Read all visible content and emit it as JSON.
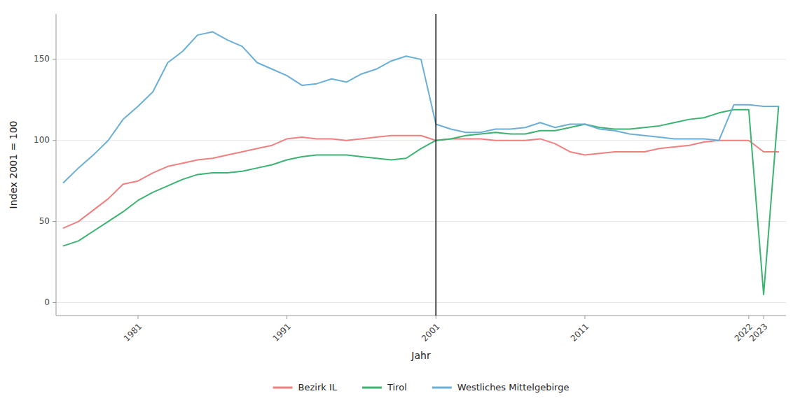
{
  "chart_data": {
    "type": "line",
    "xlabel": "Jahr",
    "ylabel": "Index 2001 = 100",
    "x": [
      1976,
      1977,
      1978,
      1979,
      1980,
      1981,
      1982,
      1983,
      1984,
      1985,
      1986,
      1987,
      1988,
      1989,
      1990,
      1991,
      1992,
      1993,
      1994,
      1995,
      1996,
      1997,
      1998,
      1999,
      2000,
      2001,
      2002,
      2003,
      2004,
      2005,
      2006,
      2007,
      2008,
      2009,
      2010,
      2011,
      2012,
      2013,
      2014,
      2015,
      2016,
      2017,
      2018,
      2019,
      2020,
      2021,
      2022,
      2023,
      2024
    ],
    "series": [
      {
        "name": "Bezirk IL",
        "color": "#F08080",
        "values": [
          46,
          50,
          57,
          64,
          73,
          75,
          80,
          84,
          86,
          88,
          89,
          91,
          93,
          95,
          97,
          101,
          102,
          101,
          101,
          100,
          101,
          102,
          103,
          103,
          103,
          100,
          101,
          101,
          101,
          100,
          100,
          100,
          101,
          98,
          93,
          91,
          92,
          93,
          93,
          93,
          95,
          96,
          97,
          99,
          100,
          100,
          100,
          93,
          93
        ]
      },
      {
        "name": "Tirol",
        "color": "#3CB371",
        "values": [
          35,
          38,
          44,
          50,
          56,
          63,
          68,
          72,
          76,
          79,
          80,
          80,
          81,
          83,
          85,
          88,
          90,
          91,
          91,
          91,
          90,
          89,
          88,
          89,
          95,
          100,
          101,
          103,
          104,
          105,
          104,
          104,
          106,
          106,
          108,
          110,
          108,
          107,
          107,
          108,
          109,
          111,
          113,
          114,
          117,
          119,
          119,
          5,
          121
        ]
      },
      {
        "name": "Westliches Mittelgebirge",
        "color": "#6BAED6",
        "values": [
          74,
          83,
          91,
          100,
          113,
          121,
          130,
          148,
          155,
          165,
          167,
          162,
          158,
          148,
          144,
          140,
          134,
          135,
          138,
          136,
          141,
          144,
          149,
          152,
          150,
          110,
          107,
          105,
          105,
          107,
          107,
          108,
          111,
          108,
          110,
          110,
          107,
          106,
          104,
          103,
          102,
          101,
          101,
          101,
          100,
          122,
          122,
          121,
          121
        ]
      }
    ],
    "xlim": [
      1975.5,
      2024.5
    ],
    "ylim": [
      -8,
      178
    ],
    "xticks": [
      1981,
      1991,
      2001,
      2011,
      2022,
      2023
    ],
    "yticks": [
      0,
      50,
      100,
      150
    ],
    "vline_x": 2001,
    "grid": true,
    "legend": "bottom"
  }
}
